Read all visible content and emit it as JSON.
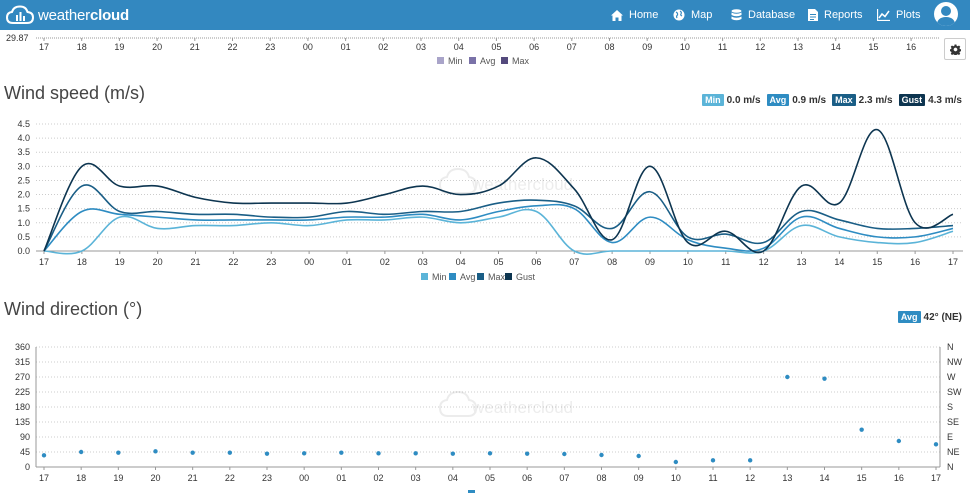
{
  "nav": {
    "logo_prefix": "weather",
    "logo_suffix": "cloud",
    "items": [
      {
        "label": "Home",
        "icon": "home-icon"
      },
      {
        "label": "Map",
        "icon": "globe-icon"
      },
      {
        "label": "Database",
        "icon": "database-icon"
      },
      {
        "label": "Reports",
        "icon": "reports-icon"
      },
      {
        "label": "Plots",
        "icon": "plots-icon"
      }
    ]
  },
  "top_chart": {
    "ytick": "29.87",
    "hours": [
      "17",
      "18",
      "19",
      "20",
      "21",
      "22",
      "23",
      "00",
      "01",
      "02",
      "03",
      "04",
      "05",
      "06",
      "07",
      "08",
      "09",
      "10",
      "11",
      "12",
      "13",
      "14",
      "15",
      "16"
    ],
    "legend": [
      {
        "name": "Min",
        "color": "#a9a4c9"
      },
      {
        "name": "Avg",
        "color": "#7a72a8"
      },
      {
        "name": "Max",
        "color": "#544a7d"
      }
    ]
  },
  "wind_speed": {
    "title": "Wind speed (m/s)",
    "badges": [
      {
        "label": "Min",
        "value": "0.0 m/s",
        "color": "#5bb4d8"
      },
      {
        "label": "Avg",
        "value": "0.9 m/s",
        "color": "#2e8cc2"
      },
      {
        "label": "Max",
        "value": "2.3 m/s",
        "color": "#1a5e86"
      },
      {
        "label": "Gust",
        "value": "4.3 m/s",
        "color": "#0d3550"
      }
    ]
  },
  "wind_direction": {
    "title": "Wind direction (°)",
    "badge": {
      "label": "Avg",
      "value": "42° (NE)",
      "color": "#2e8cc2"
    }
  },
  "watermark": "weathercloud",
  "chart_data": [
    {
      "type": "line",
      "title": "Wind speed (m/s)",
      "x": [
        "17",
        "18",
        "19",
        "20",
        "21",
        "22",
        "23",
        "00",
        "01",
        "02",
        "03",
        "04",
        "05",
        "06",
        "07",
        "08",
        "09",
        "10",
        "11",
        "12",
        "13",
        "14",
        "15",
        "16",
        "17"
      ],
      "ylim": [
        0,
        4.5
      ],
      "yticks": [
        "0.0",
        "0.5",
        "1.0",
        "1.5",
        "2.0",
        "2.5",
        "3.0",
        "3.5",
        "4.0",
        "4.5"
      ],
      "legend": "bottom",
      "series": [
        {
          "name": "Min",
          "color": "#5bb4d8",
          "values": [
            0.0,
            0.0,
            1.2,
            0.8,
            0.9,
            0.9,
            1.0,
            0.9,
            1.1,
            1.1,
            1.2,
            1.0,
            1.2,
            1.4,
            0.0,
            0.0,
            0.0,
            0.0,
            0.0,
            0.0,
            0.9,
            0.5,
            0.3,
            0.3,
            0.7
          ]
        },
        {
          "name": "Avg",
          "color": "#2e8cc2",
          "values": [
            0.0,
            1.4,
            1.3,
            1.2,
            1.1,
            1.1,
            1.1,
            1.1,
            1.2,
            1.2,
            1.3,
            1.1,
            1.4,
            1.6,
            1.5,
            0.3,
            1.2,
            0.4,
            0.1,
            0.1,
            1.2,
            0.8,
            0.5,
            0.5,
            0.8
          ]
        },
        {
          "name": "Max",
          "color": "#1a5e86",
          "values": [
            0.0,
            2.3,
            1.4,
            1.4,
            1.3,
            1.3,
            1.2,
            1.2,
            1.4,
            1.3,
            1.4,
            1.4,
            1.7,
            1.8,
            1.6,
            0.8,
            2.1,
            0.5,
            0.6,
            0.3,
            1.4,
            1.1,
            0.8,
            0.8,
            0.9
          ]
        },
        {
          "name": "Gust",
          "color": "#0d3550",
          "values": [
            0.0,
            3.0,
            2.3,
            2.3,
            1.9,
            1.7,
            1.7,
            1.7,
            1.7,
            2.0,
            2.3,
            2.0,
            2.3,
            3.3,
            2.2,
            0.4,
            3.0,
            0.3,
            0.7,
            0.0,
            2.3,
            1.7,
            4.3,
            1.0,
            1.3
          ]
        }
      ]
    },
    {
      "type": "scatter",
      "title": "Wind direction (°)",
      "x": [
        "17",
        "18",
        "19",
        "20",
        "21",
        "22",
        "23",
        "00",
        "01",
        "02",
        "03",
        "04",
        "05",
        "06",
        "07",
        "08",
        "09",
        "10",
        "11",
        "12",
        "13",
        "14",
        "15",
        "16",
        "17"
      ],
      "ylim": [
        0,
        360
      ],
      "yticks": [
        "0",
        "45",
        "90",
        "135",
        "180",
        "225",
        "270",
        "315",
        "360"
      ],
      "yticks_right": [
        "N",
        "NE",
        "E",
        "SE",
        "S",
        "SW",
        "W",
        "NW",
        "N"
      ],
      "legend": "bottom",
      "series": [
        {
          "name": "Avg",
          "color": "#2e8cc2",
          "values": [
            35,
            45,
            43,
            47,
            43,
            43,
            40,
            41,
            43,
            41,
            41,
            40,
            41,
            40,
            39,
            36,
            33,
            15,
            20,
            20,
            270,
            265,
            112,
            78,
            68
          ]
        }
      ]
    }
  ]
}
